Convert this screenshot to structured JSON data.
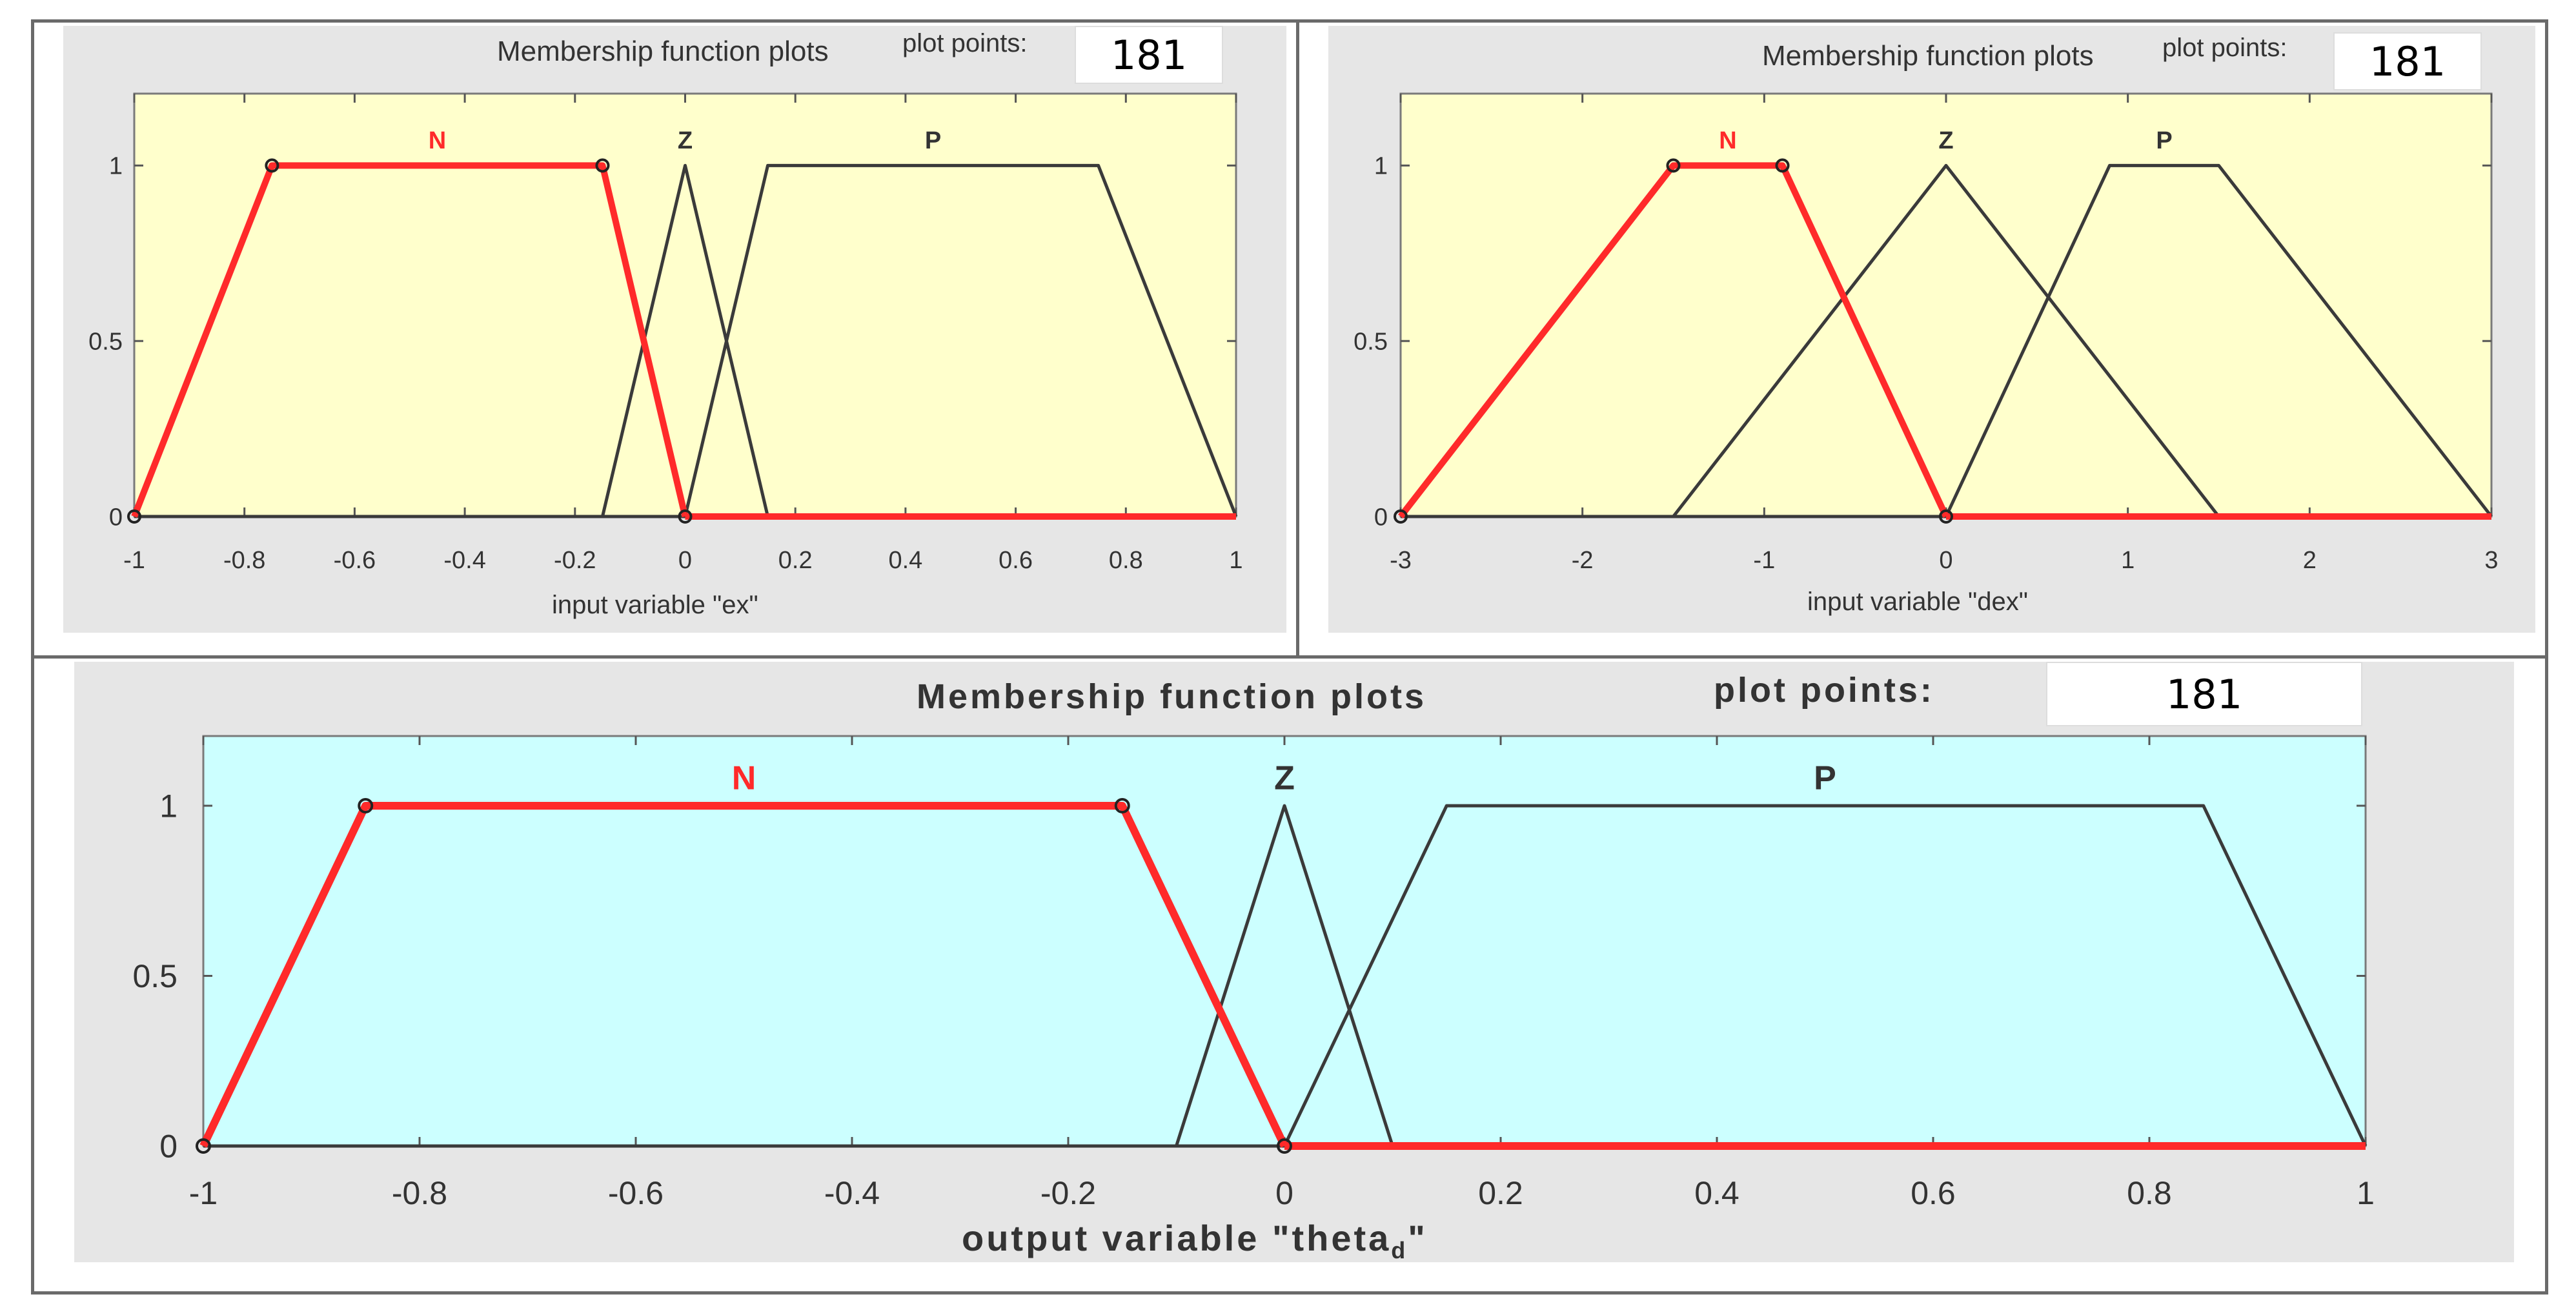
{
  "window": {
    "colors": {
      "frame": "#6a6a6a",
      "panel": "#e6e6e6",
      "input_bg": "#ffffcc",
      "output_bg": "#ccffff",
      "active": "#ff2a2a",
      "inactive": "#3a3a3a"
    }
  },
  "chart_data": [
    {
      "type": "line",
      "title": "Membership function plots",
      "plot_points_label": "plot points:",
      "plot_points_value": "181",
      "xlabel": "input variable \"ex\"",
      "xlim": [
        -1,
        1
      ],
      "ylim": [
        0,
        1
      ],
      "x_ticks": [
        "-1",
        "-0.8",
        "-0.6",
        "-0.4",
        "-0.2",
        "0",
        "0.2",
        "0.4",
        "0.6",
        "0.8",
        "1"
      ],
      "y_ticks": [
        "0",
        "0.5",
        "1"
      ],
      "series": [
        {
          "name": "N",
          "selected": true,
          "x": [
            -1,
            -0.75,
            -0.15,
            0
          ],
          "y": [
            0,
            1,
            1,
            0
          ]
        },
        {
          "name": "Z",
          "selected": false,
          "x": [
            -0.15,
            0,
            0.15
          ],
          "y": [
            0,
            1,
            0
          ]
        },
        {
          "name": "P",
          "selected": false,
          "x": [
            0,
            0.15,
            0.75,
            1
          ],
          "y": [
            0,
            1,
            1,
            0
          ]
        }
      ]
    },
    {
      "type": "line",
      "title": "Membership function plots",
      "plot_points_label": "plot points:",
      "plot_points_value": "181",
      "xlabel": "input variable \"dex\"",
      "xlim": [
        -3,
        3
      ],
      "ylim": [
        0,
        1
      ],
      "x_ticks": [
        "-3",
        "-2",
        "-1",
        "0",
        "1",
        "2",
        "3"
      ],
      "y_ticks": [
        "0",
        "0.5",
        "1"
      ],
      "series": [
        {
          "name": "N",
          "selected": true,
          "x": [
            -3,
            -1.5,
            -0.9,
            0
          ],
          "y": [
            0,
            1,
            1,
            0
          ]
        },
        {
          "name": "Z",
          "selected": false,
          "x": [
            -1.5,
            0,
            1.5
          ],
          "y": [
            0,
            1,
            0
          ]
        },
        {
          "name": "P",
          "selected": false,
          "x": [
            0,
            0.9,
            1.5,
            3
          ],
          "y": [
            0,
            1,
            1,
            0
          ]
        }
      ]
    },
    {
      "type": "line",
      "title": "Membership function plots",
      "plot_points_label": "plot points:",
      "plot_points_value": "181",
      "xlabel": "output variable \"theta",
      "xlabel_subscript": "d",
      "xlabel_suffix": "\"",
      "xlim": [
        -1,
        1
      ],
      "ylim": [
        0,
        1
      ],
      "x_ticks": [
        "-1",
        "-0.8",
        "-0.6",
        "-0.4",
        "-0.2",
        "0",
        "0.2",
        "0.4",
        "0.6",
        "0.8",
        "1"
      ],
      "y_ticks": [
        "0",
        "0.5",
        "1"
      ],
      "series": [
        {
          "name": "N",
          "selected": true,
          "x": [
            -1,
            -0.85,
            -0.15,
            0
          ],
          "y": [
            0,
            1,
            1,
            0
          ]
        },
        {
          "name": "Z",
          "selected": false,
          "x": [
            -0.1,
            0,
            0.1
          ],
          "y": [
            0,
            1,
            0
          ]
        },
        {
          "name": "P",
          "selected": false,
          "x": [
            0,
            0.15,
            0.85,
            1
          ],
          "y": [
            0,
            1,
            1,
            0
          ]
        }
      ]
    }
  ]
}
